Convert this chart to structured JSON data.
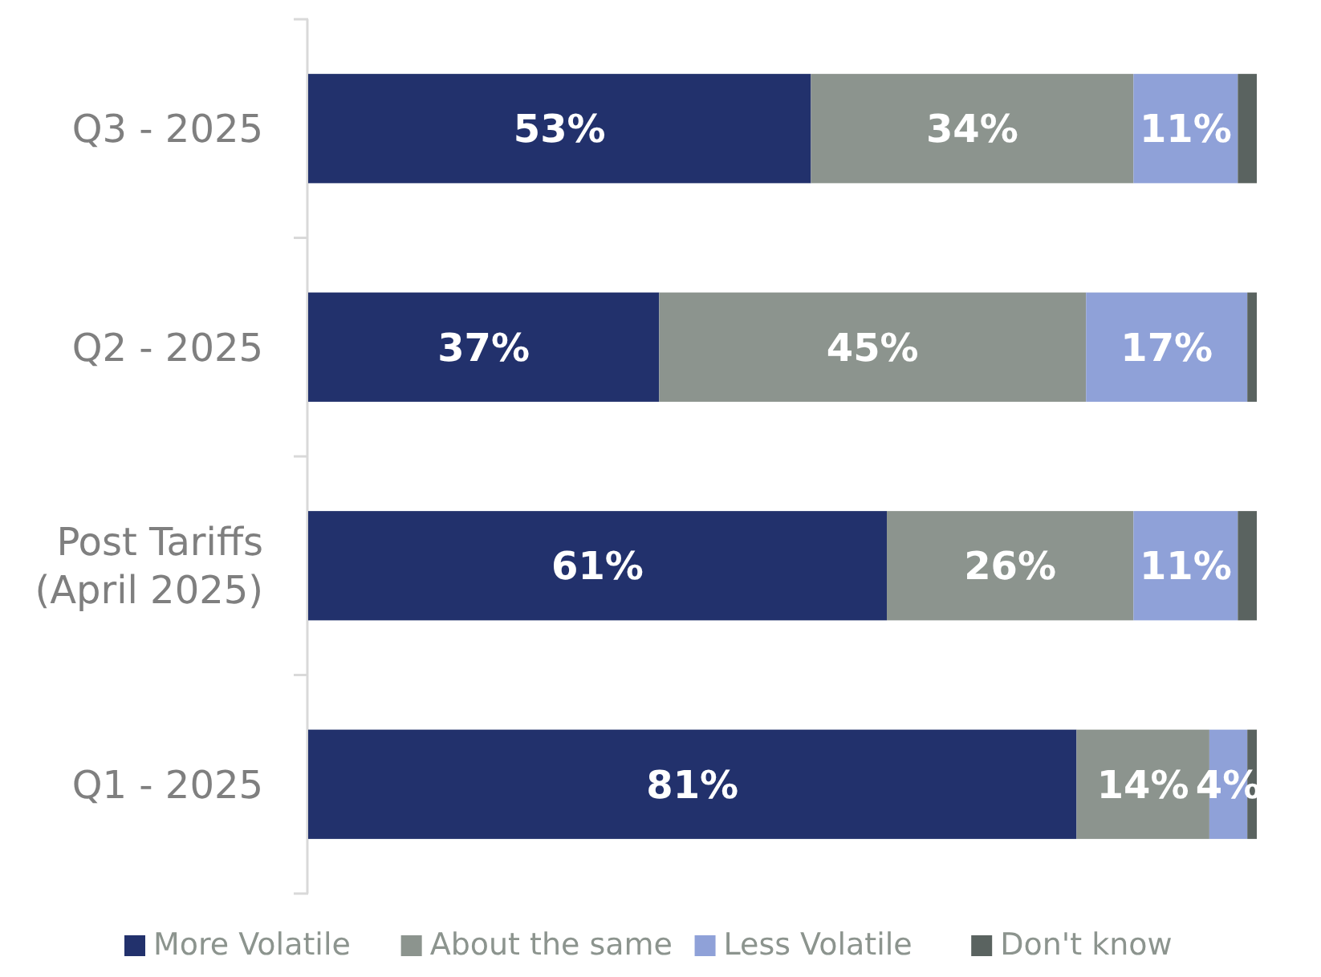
{
  "chart_data": {
    "type": "bar",
    "orientation": "horizontal",
    "stacked": true,
    "legend": "bottom",
    "categories": [
      "Q3 - 2025",
      "Q2 - 2025",
      "Post Tariffs (April 2025)",
      "Q1 - 2025"
    ],
    "xlim": [
      0,
      100
    ],
    "tick_labels": "y",
    "series": [
      {
        "name": "More Volatile",
        "color": "#22316c",
        "values": [
          53,
          37,
          61,
          81
        ],
        "value_labels": [
          "53%",
          "37%",
          "61%",
          "81%"
        ]
      },
      {
        "name": "About the same",
        "color": "#8c948e",
        "values": [
          34,
          45,
          26,
          14
        ],
        "value_labels": [
          "34%",
          "45%",
          "26%",
          "14%"
        ]
      },
      {
        "name": "Less Volatile",
        "color": "#8fa1d8",
        "values": [
          11,
          17,
          11,
          4
        ],
        "value_labels": [
          "11%",
          "17%",
          "11%",
          "4%"
        ]
      },
      {
        "name": "Don't know",
        "color": "#5a6360",
        "values": [
          2,
          1,
          2,
          1
        ]
      }
    ]
  }
}
